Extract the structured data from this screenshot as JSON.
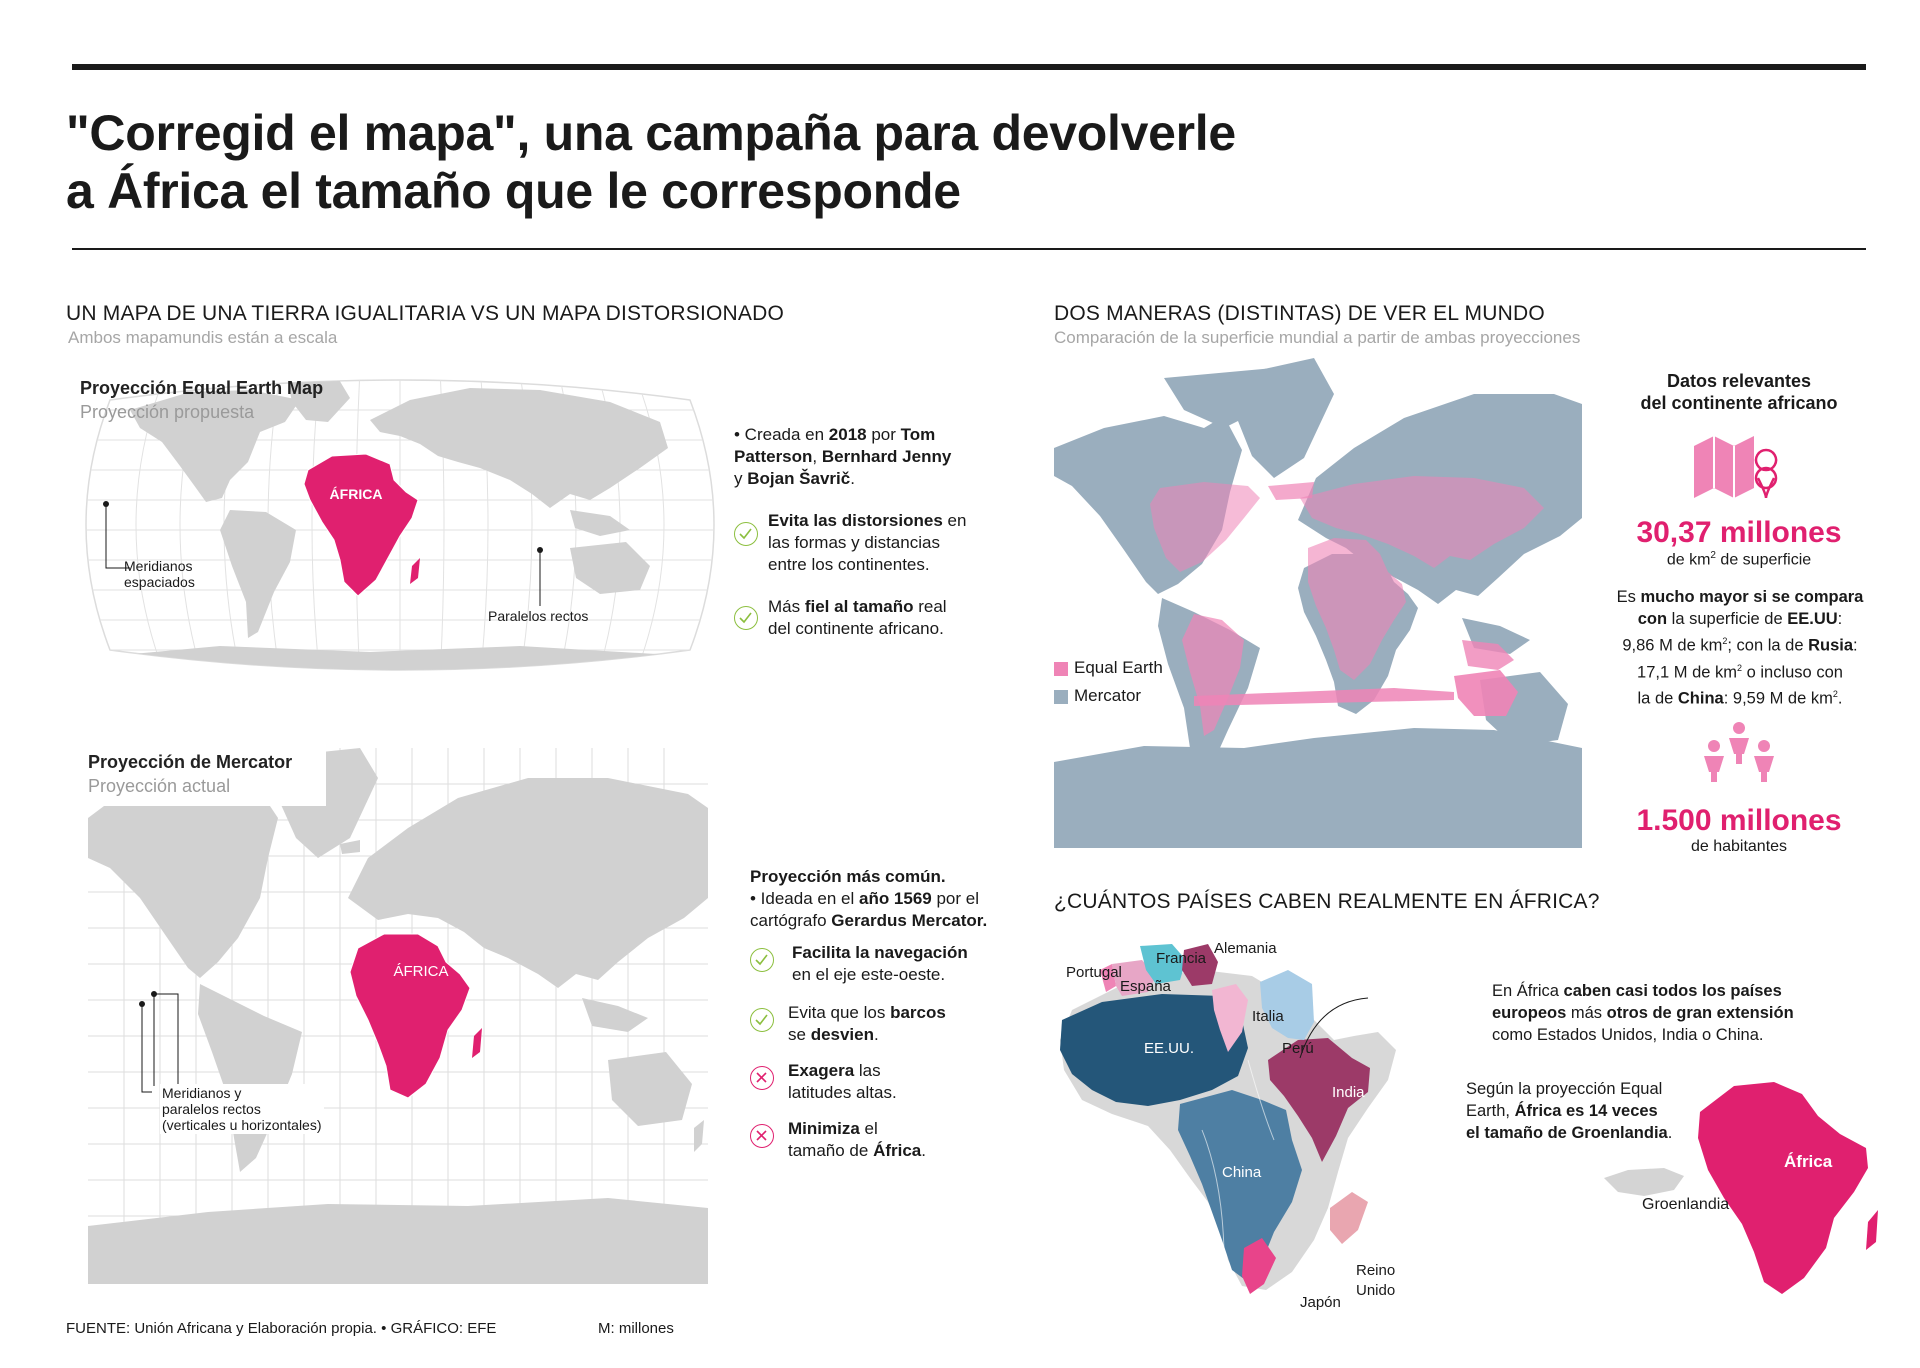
{
  "header": {
    "title_line1": "\"Corregid el mapa\", una campaña para devolverle",
    "title_line2": "a África el tamaño que le corresponde"
  },
  "left": {
    "section_title": "UN MAPA DE UNA TIERRA IGUALITARIA VS UN MAPA DISTORSIONADO",
    "section_sub": "Ambos mapamundis están a escala",
    "equal_earth": {
      "title": "Proyección Equal Earth Map",
      "sub": "Proyección propuesta",
      "africa_label": "ÁFRICA",
      "meridianos_l1": "Meridianos",
      "meridianos_l2": "espaciados",
      "paralelos": "Paralelos rectos",
      "bullet_a": "• Creada en ",
      "bullet_year": "2018",
      "bullet_b": " por ",
      "bullet_n1": "Tom",
      "bullet_n2": "Patterson",
      "bullet_c": ", ",
      "bullet_n3": "Bernhard Jenny",
      "bullet_d": "y ",
      "bullet_n4": "Bojan Šavrič",
      "bullet_e": ".",
      "check1_b": "Evita las distorsiones",
      "check1_r1": " en",
      "check1_l2": "las formas y distancias",
      "check1_l3": "entre los continentes.",
      "check2_a": "Más ",
      "check2_b": "fiel al tamaño",
      "check2_r": " real",
      "check2_l2": "del continente africano."
    },
    "mercator": {
      "title": "Proyección de Mercator",
      "sub": "Proyección actual",
      "africa_label": "ÁFRICA",
      "lbl_l1": "Meridianos y",
      "lbl_l2": "paralelos rectos",
      "lbl_l3": "(verticales u horizontales)",
      "head": "Proyección más común.",
      "bullet_a": "• Ideada en el ",
      "bullet_year": "año 1569",
      "bullet_b": " por el",
      "bullet_l2a": "cartógrafo ",
      "bullet_l2b": "Gerardus Mercator.",
      "item1_b": "Facilita la navegación",
      "item1_l2": "en el eje este-oeste.",
      "item2_a": "Evita que los ",
      "item2_b": "barcos",
      "item2_l2a": "se ",
      "item2_l2b": "desvien",
      "item2_l2c": ".",
      "item3_b": "Exagera",
      "item3_r": " las",
      "item3_l2": "latitudes altas.",
      "item4_b": "Minimiza",
      "item4_r": " el",
      "item4_l2a": "tamaño de ",
      "item4_l2b": "África",
      "item4_l2c": "."
    }
  },
  "right": {
    "section_title": "DOS MANERAS (DISTINTAS) DE VER EL MUNDO",
    "section_sub": "Comparación de la superficie mundial a partir de ambas proyecciones",
    "legend": [
      {
        "label": "Equal Earth",
        "color": "#ef84b6"
      },
      {
        "label": "Mercator",
        "color": "#9aaebe"
      }
    ],
    "facts": {
      "title_l1": "Datos relevantes",
      "title_l2": "del continente africano",
      "area_value": "30,37 millones",
      "area_unit_a": "de km",
      "area_unit_sup": "2",
      "area_unit_b": " de superficie",
      "cmp_l1a": "Es ",
      "cmp_l1b": "mucho mayor si se compara",
      "cmp_l2a": "con",
      "cmp_l2b": " la superficie de ",
      "cmp_l2c": "EE.UU",
      "cmp_l2d": ":",
      "cmp_l3a": "9,86 M de km",
      "cmp_l3b": "; con la de ",
      "cmp_l3c": "Rusia",
      "cmp_l3d": ":",
      "cmp_l4a": "17,1 M de km",
      "cmp_l4b": " o incluso con",
      "cmp_l5a": "la de ",
      "cmp_l5b": "China",
      "cmp_l5c": ": 9,59 M de km",
      "cmp_l5d": ".",
      "pop_value": "1.500 millones",
      "pop_unit": "de habitantes"
    },
    "fit": {
      "section_title": "¿CUÁNTOS PAÍSES CABEN REALMENTE EN ÁFRICA?",
      "countries": [
        "Portugal",
        "España",
        "Francia",
        "Alemania",
        "Italia",
        "Perú",
        "EE.UU.",
        "India",
        "China",
        "Reino",
        "Unido",
        "Japón"
      ],
      "note1_l1a": "En África ",
      "note1_l1b": "caben casi todos los países",
      "note1_l2a": "europeos",
      "note1_l2b": " más ",
      "note1_l2c": "otros de gran extensión",
      "note1_l3": "como Estados Unidos, India o China.",
      "note2_l1": "Según la proyección Equal",
      "note2_l2a": "Earth, ",
      "note2_l2b": "África es 14 veces",
      "note2_l3a": "el tamaño de Groenlandia",
      "note2_l3b": ".",
      "africa": "África",
      "greenland": "Groenlandia"
    }
  },
  "footer": {
    "source": "FUENTE: Unión Africana y Elaboración propia. • GRÁFICO: EFE",
    "note": "M: millones"
  },
  "colors": {
    "pink": "#e0206f",
    "check_green": "#8cbf3f",
    "usa_blue": "#245679",
    "china_blue": "#4e7fa3",
    "india_purple": "#9c3a68"
  }
}
